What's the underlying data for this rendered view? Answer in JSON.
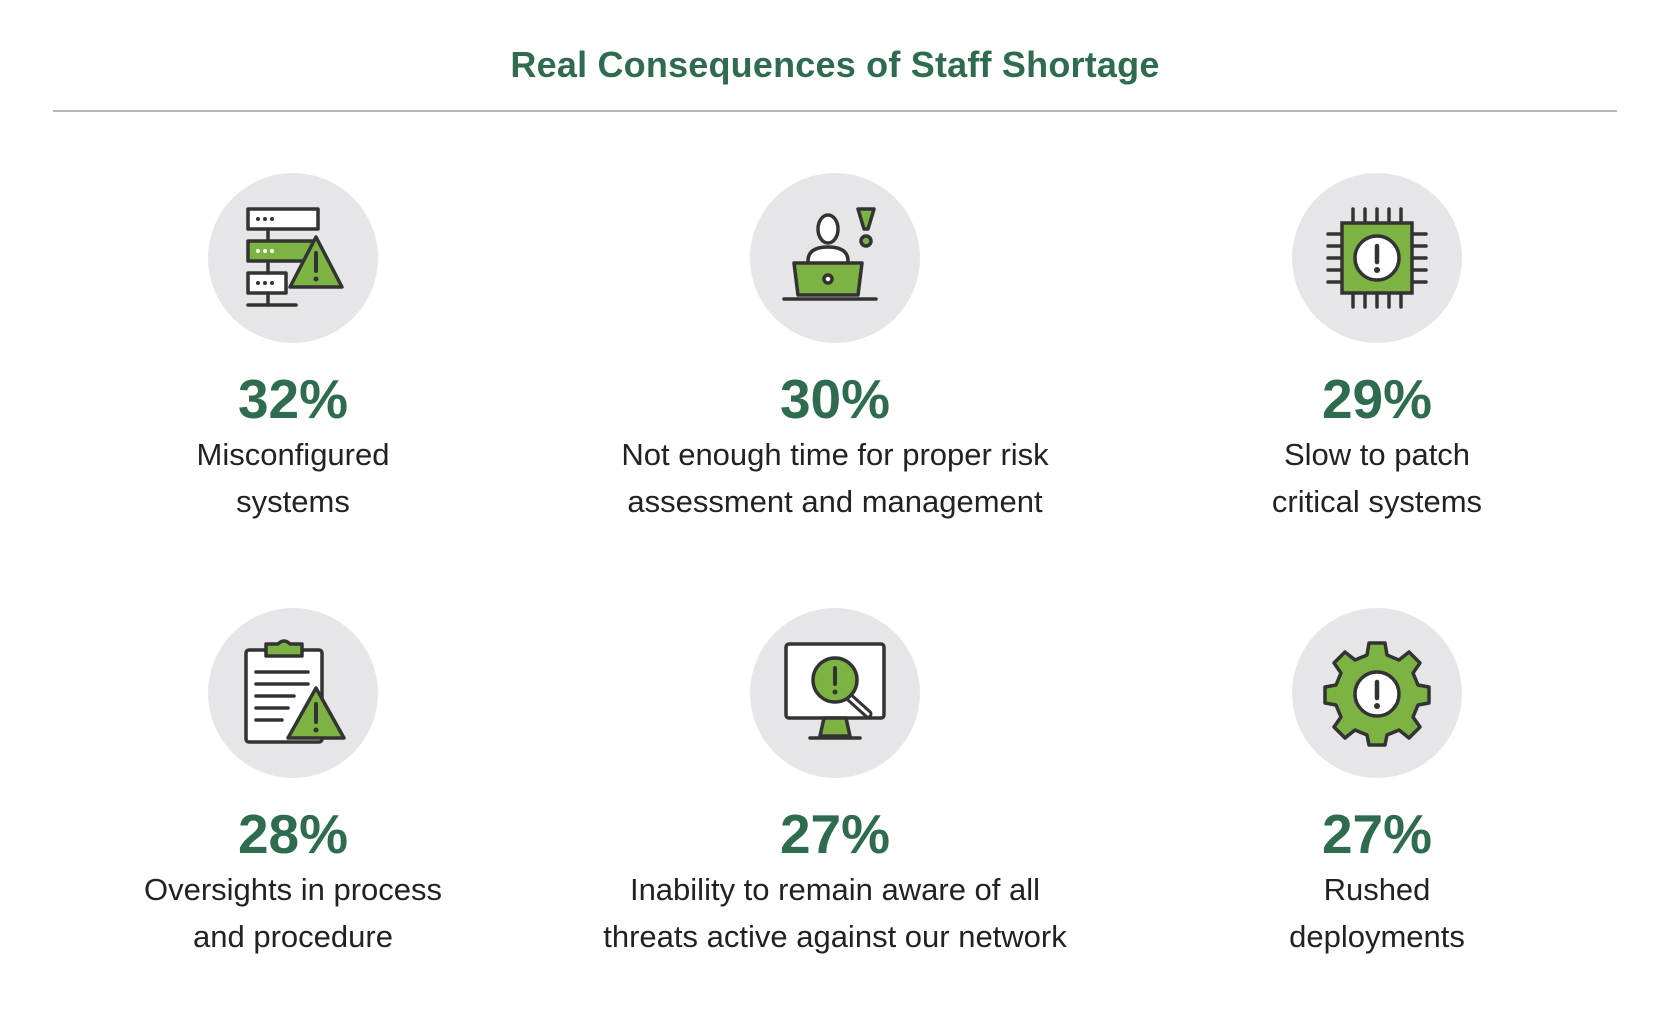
{
  "title": "Real Consequences of Staff Shortage",
  "colors": {
    "accent_green": "#2e6b4f",
    "icon_green": "#7db342",
    "icon_outline": "#333333",
    "circle_bg": "#e6e6e8"
  },
  "chart_data": {
    "type": "table",
    "title": "Real Consequences of Staff Shortage",
    "unit": "%",
    "items": [
      {
        "value": 32,
        "label": "32%",
        "line1": "Misconfigured",
        "line2": "systems",
        "icon": "server-warning-icon"
      },
      {
        "value": 30,
        "label": "30%",
        "line1": "Not enough time for proper risk",
        "line2": "assessment and management",
        "icon": "person-laptop-alert-icon"
      },
      {
        "value": 29,
        "label": "29%",
        "line1": "Slow to patch",
        "line2": "critical systems",
        "icon": "chip-alert-icon"
      },
      {
        "value": 28,
        "label": "28%",
        "line1": "Oversights in process",
        "line2": "and procedure",
        "icon": "clipboard-warning-icon"
      },
      {
        "value": 27,
        "label": "27%",
        "line1": "Inability to remain aware of all",
        "line2": "threats active against our network",
        "icon": "monitor-search-alert-icon"
      },
      {
        "value": 27,
        "label": "27%",
        "line1": "Rushed",
        "line2": "deployments",
        "icon": "gear-alert-icon"
      }
    ]
  }
}
